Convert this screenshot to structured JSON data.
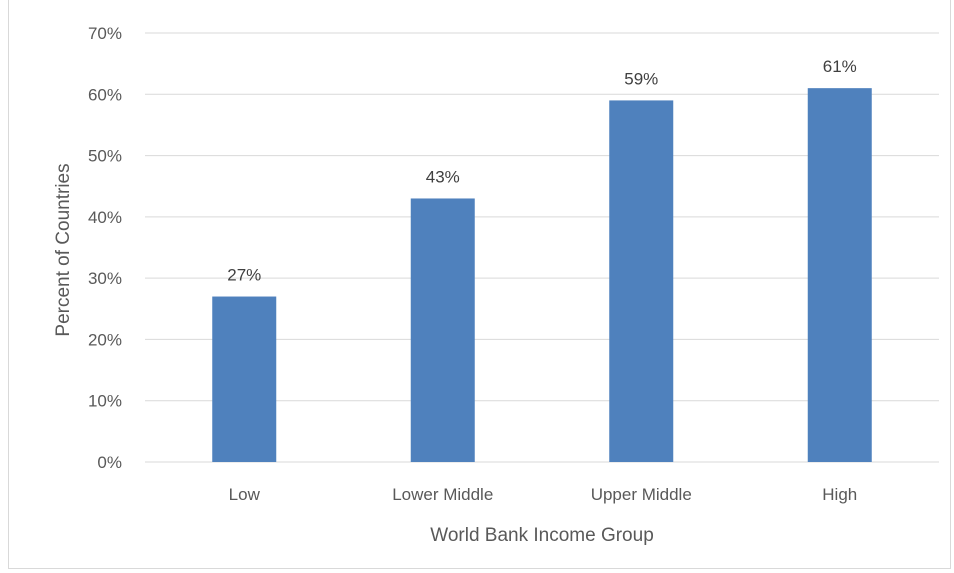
{
  "chart_data": {
    "type": "bar",
    "categories": [
      "Low",
      "Lower Middle",
      "Upper Middle",
      "High"
    ],
    "values": [
      27,
      43,
      59,
      61
    ],
    "data_labels": [
      "27%",
      "43%",
      "59%",
      "61%"
    ],
    "xlabel": "World Bank Income Group",
    "ylabel": "Percent of Countries",
    "ylim": [
      0,
      70
    ],
    "yticks": [
      0,
      10,
      20,
      30,
      40,
      50,
      60,
      70
    ],
    "ytick_labels": [
      "0%",
      "10%",
      "20%",
      "30%",
      "40%",
      "50%",
      "60%",
      "70%"
    ],
    "grid": true,
    "legend": "none",
    "bar_color": "#4f81bd",
    "grid_color": "#d9d9d9",
    "text_color": "#595959"
  }
}
